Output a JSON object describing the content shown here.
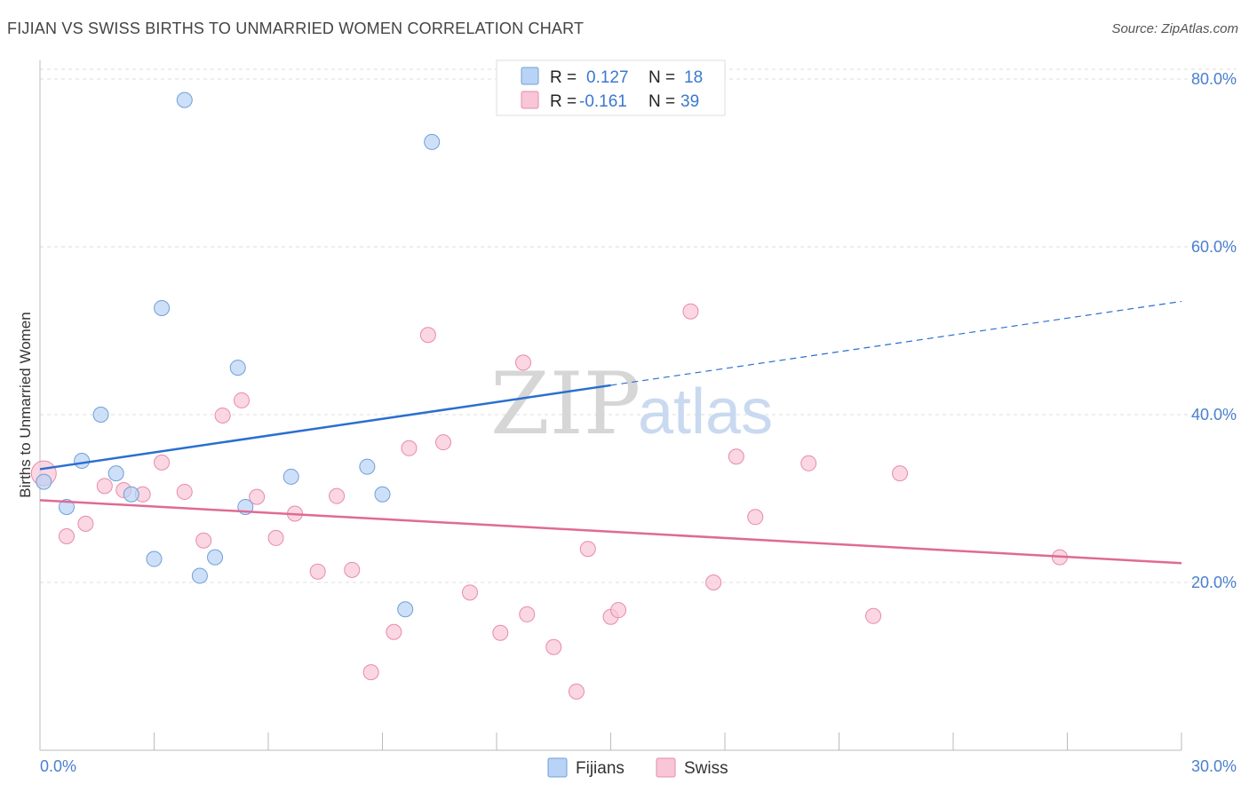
{
  "header": {
    "title": "FIJIAN VS SWISS BIRTHS TO UNMARRIED WOMEN CORRELATION CHART",
    "source": "Source: ZipAtlas.com"
  },
  "watermark": {
    "zip": "ZIP",
    "atlas": "atlas"
  },
  "legend": {
    "r_label": "R =",
    "n_label": "N =",
    "fijians": {
      "r": "0.127",
      "n": "18"
    },
    "swiss": {
      "r": "-0.161",
      "n": "39"
    }
  },
  "colors": {
    "fijians_fill": "#b8d3f5",
    "fijians_stroke": "#6f9fd8",
    "fijians_line": "#2a6fd0",
    "swiss_fill": "#f8c6d6",
    "swiss_stroke": "#e88aaa",
    "swiss_line": "#e06a94",
    "grid": "#dddddd"
  },
  "chart_data": {
    "type": "scatter",
    "title": "FIJIAN VS SWISS BIRTHS TO UNMARRIED WOMEN CORRELATION CHART",
    "xlabel": "",
    "ylabel": "Births to Unmarried Women",
    "xlim": [
      0,
      30
    ],
    "ylim": [
      0,
      80
    ],
    "x_tick_labels": [
      "0.0%",
      "30.0%"
    ],
    "y_ticks": [
      20,
      40,
      60,
      80
    ],
    "y_tick_labels": [
      "20.0%",
      "40.0%",
      "60.0%",
      "80.0%"
    ],
    "grid": true,
    "legend_position": "top-center",
    "series": [
      {
        "name": "Fijians",
        "points": [
          [
            0.1,
            32.0
          ],
          [
            0.7,
            29.0
          ],
          [
            1.1,
            34.5
          ],
          [
            1.6,
            40.0
          ],
          [
            2.0,
            33.0
          ],
          [
            2.4,
            30.5
          ],
          [
            3.0,
            22.8
          ],
          [
            3.2,
            52.7
          ],
          [
            3.8,
            77.5
          ],
          [
            4.2,
            20.8
          ],
          [
            4.6,
            23.0
          ],
          [
            5.2,
            45.6
          ],
          [
            5.4,
            29.0
          ],
          [
            6.6,
            32.6
          ],
          [
            8.6,
            33.8
          ],
          [
            9.0,
            30.5
          ],
          [
            9.6,
            16.8
          ],
          [
            10.3,
            72.5
          ]
        ],
        "trend": {
          "x": [
            0,
            15
          ],
          "y": [
            33.5,
            43.5
          ],
          "dashed_extension_x": [
            15,
            30
          ],
          "dashed_extension_y": [
            43.5,
            53.5
          ]
        }
      },
      {
        "name": "Swiss",
        "points": [
          [
            0.1,
            33.0
          ],
          [
            0.7,
            25.5
          ],
          [
            1.2,
            27.0
          ],
          [
            1.7,
            31.5
          ],
          [
            2.2,
            31.0
          ],
          [
            2.7,
            30.5
          ],
          [
            3.2,
            34.3
          ],
          [
            3.8,
            30.8
          ],
          [
            4.3,
            25.0
          ],
          [
            4.8,
            39.9
          ],
          [
            5.3,
            41.7
          ],
          [
            5.7,
            30.2
          ],
          [
            6.2,
            25.3
          ],
          [
            6.7,
            28.2
          ],
          [
            7.3,
            21.3
          ],
          [
            7.8,
            30.3
          ],
          [
            8.2,
            21.5
          ],
          [
            8.7,
            9.3
          ],
          [
            9.3,
            14.1
          ],
          [
            9.7,
            36.0
          ],
          [
            10.2,
            49.5
          ],
          [
            10.6,
            36.7
          ],
          [
            11.3,
            18.8
          ],
          [
            12.1,
            14.0
          ],
          [
            12.7,
            46.2
          ],
          [
            12.8,
            16.2
          ],
          [
            13.5,
            12.3
          ],
          [
            14.1,
            7.0
          ],
          [
            14.4,
            24.0
          ],
          [
            15.0,
            15.9
          ],
          [
            15.2,
            16.7
          ],
          [
            17.1,
            52.3
          ],
          [
            17.7,
            20.0
          ],
          [
            18.3,
            35.0
          ],
          [
            18.8,
            27.8
          ],
          [
            20.2,
            34.2
          ],
          [
            21.9,
            16.0
          ],
          [
            22.6,
            33.0
          ],
          [
            26.8,
            23.0
          ]
        ],
        "trend": {
          "x": [
            0,
            30
          ],
          "y": [
            29.8,
            22.3
          ]
        }
      }
    ]
  },
  "bottom_legend": {
    "fijians": "Fijians",
    "swiss": "Swiss"
  }
}
